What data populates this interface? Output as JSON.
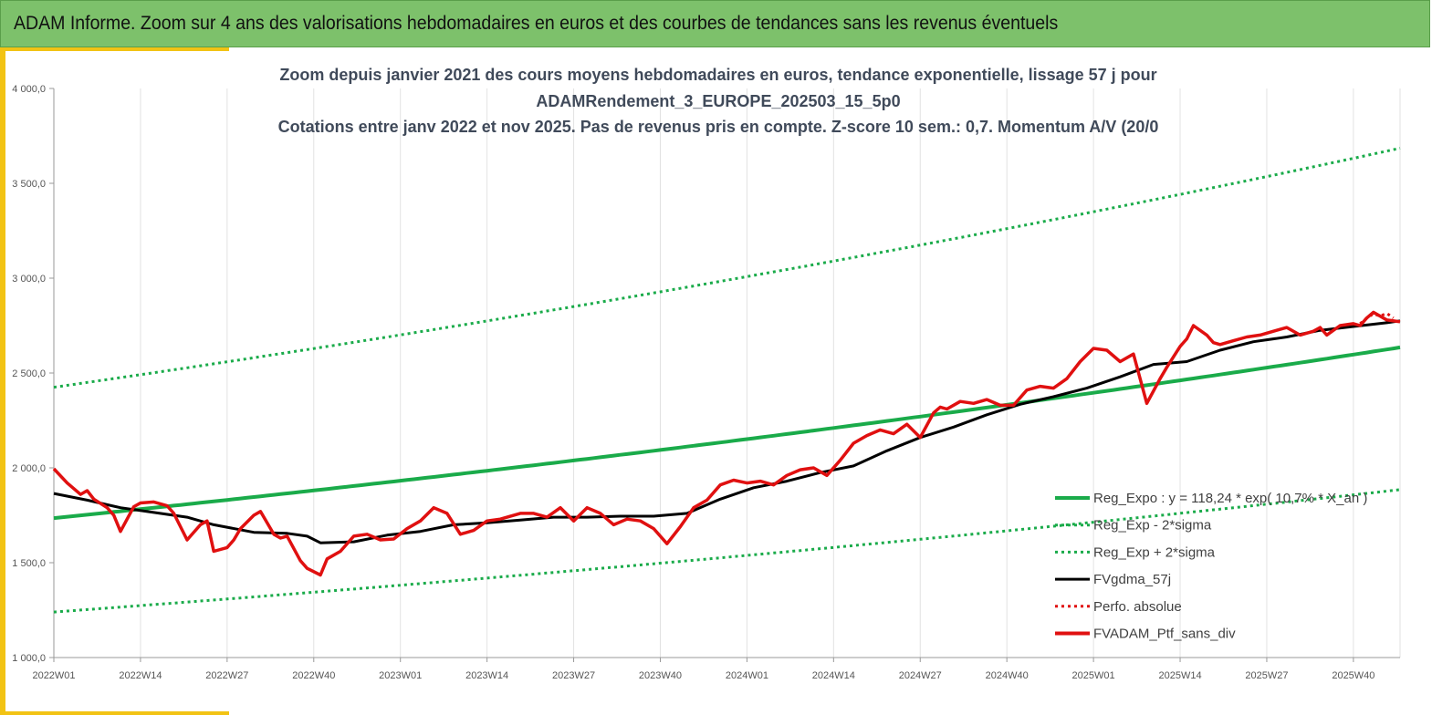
{
  "header": {
    "title": "ADAM Informe. Zoom sur 4 ans des valorisations hebdomadaires en euros et des courbes de tendances sans les revenus éventuels"
  },
  "colors": {
    "header_bg": "#7dc16b",
    "green": "#1aab4a",
    "black": "#000000",
    "red": "#e01010",
    "accent_yellow": "#f2c314"
  },
  "chart_data": {
    "type": "line",
    "title_lines": [
      "Zoom depuis janvier 2021 des cours moyens hebdomadaires  en euros, tendance exponentielle, lissage 57 j pour",
      "ADAMRendement_3_EUROPE_202503_15_5p0",
      "Cotations  entre janv 2022 et nov 2025. Pas de revenus pris en compte. Z-score 10 sem.: 0,7. Momentum A/V (20/0"
    ],
    "ylim": [
      1000,
      4000
    ],
    "y_ticks": [
      "1 000,0",
      "1 500,0",
      "2 000,0",
      "2 500,0",
      "3 000,0",
      "3 500,0",
      "4 000,0"
    ],
    "y_tick_values": [
      1000,
      1500,
      2000,
      2500,
      3000,
      3500,
      4000
    ],
    "x_range": [
      0,
      202
    ],
    "x_ticks": [
      "2022W01",
      "2022W14",
      "2022W27",
      "2022W40",
      "2023W01",
      "2023W14",
      "2023W27",
      "2023W40",
      "2024W01",
      "2024W14",
      "2024W27",
      "2024W40",
      "2025W01",
      "2025W14",
      "2025W27",
      "2025W40"
    ],
    "x_tick_weeks": [
      0,
      13,
      26,
      39,
      52,
      65,
      78,
      91,
      104,
      117,
      130,
      143,
      156,
      169,
      182,
      195
    ],
    "series": [
      {
        "name": "Reg_Expo : y = 118,24 * exp( 10,7% *  X_an )",
        "style": "solid",
        "color": "#1aab4a",
        "x": [
          0,
          202
        ],
        "values": [
          1735,
          2635
        ],
        "curve": "exp"
      },
      {
        "name": "Reg_Exp - 2*sigma",
        "style": "dotted",
        "color": "#1aab4a",
        "x": [
          0,
          202
        ],
        "values": [
          1240,
          1885
        ],
        "curve": "exp"
      },
      {
        "name": "Reg_Exp + 2*sigma",
        "style": "dotted",
        "color": "#1aab4a",
        "x": [
          0,
          202
        ],
        "values": [
          2425,
          3685
        ],
        "curve": "exp"
      },
      {
        "name": "FVgdma_57j",
        "style": "solid",
        "color": "#000000",
        "x": [
          0,
          5,
          10,
          15,
          20,
          24,
          30,
          35,
          38,
          40,
          45,
          50,
          55,
          60,
          65,
          70,
          75,
          80,
          85,
          90,
          95,
          100,
          105,
          110,
          115,
          120,
          125,
          130,
          135,
          140,
          145,
          150,
          155,
          160,
          165,
          170,
          175,
          180,
          185,
          190,
          195,
          200,
          202
        ],
        "values": [
          1865,
          1830,
          1790,
          1765,
          1740,
          1700,
          1660,
          1655,
          1640,
          1605,
          1610,
          1645,
          1665,
          1700,
          1710,
          1725,
          1740,
          1740,
          1745,
          1745,
          1760,
          1835,
          1895,
          1930,
          1975,
          2010,
          2090,
          2160,
          2215,
          2280,
          2335,
          2375,
          2420,
          2480,
          2545,
          2560,
          2620,
          2665,
          2690,
          2725,
          2745,
          2765,
          2775
        ]
      },
      {
        "name": "Perfo. absolue",
        "style": "dotted",
        "color": "#e01010",
        "x": [
          196,
          197,
          198,
          199,
          200,
          201
        ],
        "values": [
          2760,
          2790,
          2812,
          2800,
          2815,
          2790
        ]
      },
      {
        "name": "FVADAM_Ptf_sans_div",
        "style": "solid",
        "color": "#e01010",
        "x": [
          0,
          2,
          4,
          5,
          6,
          8,
          9,
          10,
          12,
          13,
          15,
          17,
          18,
          20,
          22,
          23,
          24,
          26,
          27,
          28,
          30,
          31,
          33,
          34,
          35,
          37,
          38,
          40,
          41,
          43,
          45,
          47,
          49,
          51,
          53,
          55,
          57,
          59,
          61,
          63,
          65,
          67,
          70,
          72,
          74,
          76,
          78,
          80,
          82,
          84,
          86,
          88,
          90,
          92,
          94,
          96,
          98,
          100,
          102,
          104,
          106,
          108,
          110,
          112,
          114,
          116,
          118,
          120,
          122,
          124,
          126,
          128,
          130,
          132,
          133,
          134,
          136,
          138,
          140,
          142,
          144,
          146,
          148,
          150,
          152,
          154,
          156,
          158,
          160,
          162,
          164,
          166,
          167,
          169,
          170,
          171,
          173,
          174,
          175,
          177,
          179,
          181,
          183,
          185,
          187,
          189,
          190,
          191,
          193,
          195,
          196,
          197,
          198,
          200,
          202
        ],
        "values": [
          1995,
          1920,
          1860,
          1880,
          1835,
          1790,
          1750,
          1665,
          1795,
          1815,
          1820,
          1800,
          1760,
          1620,
          1700,
          1720,
          1560,
          1580,
          1620,
          1680,
          1750,
          1770,
          1650,
          1630,
          1640,
          1510,
          1470,
          1435,
          1520,
          1560,
          1640,
          1650,
          1620,
          1625,
          1680,
          1720,
          1790,
          1760,
          1650,
          1670,
          1720,
          1730,
          1760,
          1760,
          1740,
          1790,
          1720,
          1790,
          1760,
          1700,
          1730,
          1720,
          1680,
          1600,
          1690,
          1790,
          1830,
          1910,
          1935,
          1920,
          1930,
          1910,
          1960,
          1990,
          2000,
          1960,
          2040,
          2130,
          2170,
          2200,
          2180,
          2230,
          2160,
          2290,
          2320,
          2310,
          2350,
          2340,
          2360,
          2330,
          2330,
          2410,
          2430,
          2420,
          2470,
          2560,
          2630,
          2620,
          2560,
          2600,
          2340,
          2470,
          2530,
          2640,
          2680,
          2750,
          2700,
          2660,
          2650,
          2670,
          2690,
          2700,
          2720,
          2740,
          2700,
          2720,
          2740,
          2700,
          2750,
          2760,
          2750,
          2790,
          2820,
          2780,
          2770
        ]
      }
    ],
    "legend_position": "bottom-right",
    "grid": "vertical"
  }
}
